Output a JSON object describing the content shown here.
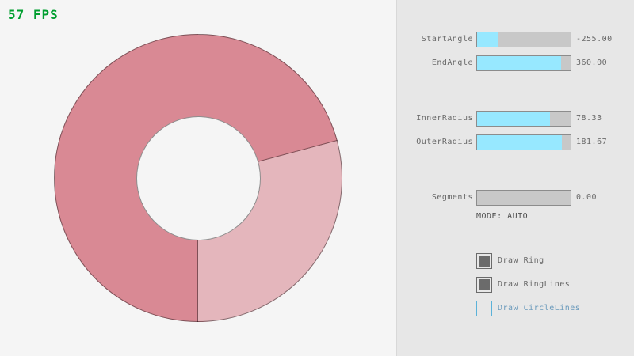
{
  "fps": {
    "text": "57 FPS",
    "color": "#009E2F"
  },
  "ring": {
    "color_single_pass": "#E4B6BC",
    "color_overlap": "#D98994",
    "outline_color": "rgba(0,0,0,0.42)"
  },
  "panel": {
    "sliders": [
      {
        "label": "StartAngle",
        "value": "-255.00",
        "fill_pct": 21.7
      },
      {
        "label": "EndAngle",
        "value": "360.00",
        "fill_pct": 90.0
      },
      {
        "label": "InnerRadius",
        "value": "78.33",
        "fill_pct": 78.3
      },
      {
        "label": "OuterRadius",
        "value": "181.67",
        "fill_pct": 90.8
      },
      {
        "label": "Segments",
        "value": "0.00",
        "fill_pct": 0
      }
    ],
    "mode_text": "MODE: AUTO",
    "checkboxes": [
      {
        "label": "Draw Ring",
        "checked": true
      },
      {
        "label": "Draw RingLines",
        "checked": true
      },
      {
        "label": "Draw CircleLines",
        "checked": false
      }
    ],
    "colors": {
      "panel_bg": "#E7E7E7",
      "slider_fill": "#97E8FF",
      "slider_track": "#C8C8C8",
      "slider_border": "#8C8C8C",
      "checkbox_checked": "#6B6B6B",
      "checkbox_unchecked_border": "#5BB2D9",
      "checkbox_unchecked_text": "#6C9BBC"
    }
  }
}
